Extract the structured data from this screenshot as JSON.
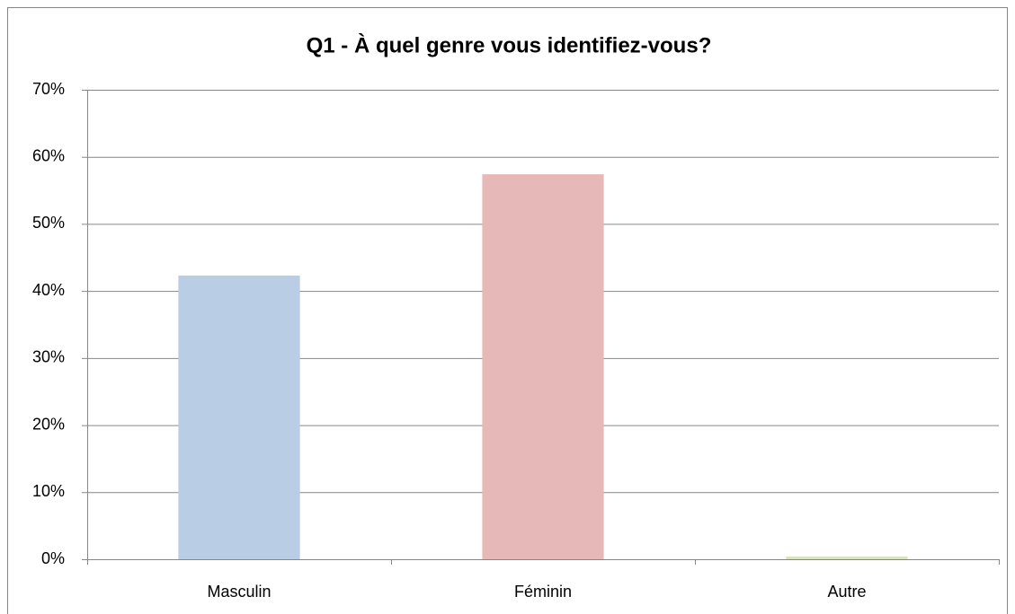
{
  "chart_data": {
    "type": "bar",
    "title": "Q1 - À quel genre vous identifiez-vous?",
    "categories": [
      "Masculin",
      "Féminin",
      "Autre"
    ],
    "values": [
      42.3,
      57.4,
      0.4
    ],
    "colors": [
      "#b9cde5",
      "#e6b9b8",
      "#d7e4bd"
    ],
    "ylim": [
      0,
      70
    ],
    "yticks": [
      {
        "value": 0,
        "label": "0%"
      },
      {
        "value": 10,
        "label": "10%"
      },
      {
        "value": 20,
        "label": "20%"
      },
      {
        "value": 30,
        "label": "30%"
      },
      {
        "value": 40,
        "label": "40%"
      },
      {
        "value": 50,
        "label": "50%"
      },
      {
        "value": 60,
        "label": "60%"
      },
      {
        "value": 70,
        "label": "70%"
      }
    ],
    "grid": true
  }
}
